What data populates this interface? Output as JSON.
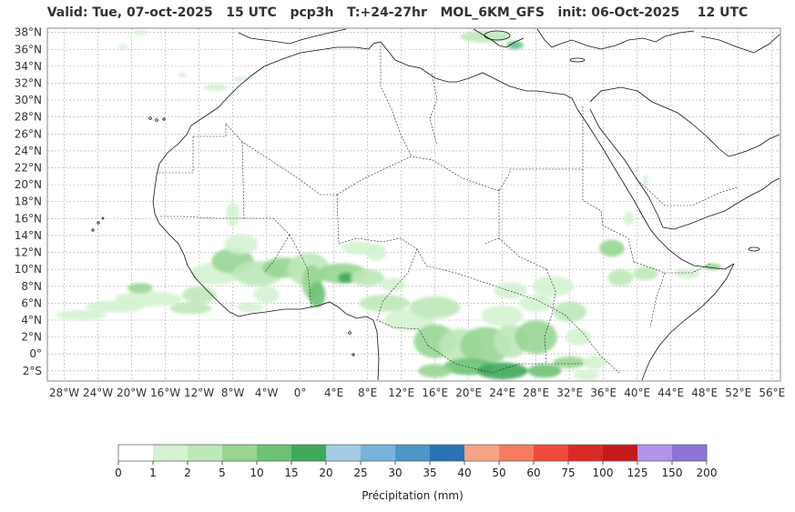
{
  "title": "Valid: Tue, 07-oct-2025   15 UTC   pcp3h   T:+24-27hr   MOL_6KM_GFS   init: 06-Oct-2025    12 UTC",
  "map": {
    "lon_range": [
      -30,
      57
    ],
    "lat_range": [
      -3.2,
      38.5
    ],
    "lat_ticks": [
      "38°N",
      "36°N",
      "34°N",
      "32°N",
      "30°N",
      "28°N",
      "26°N",
      "24°N",
      "22°N",
      "20°N",
      "18°N",
      "16°N",
      "14°N",
      "12°N",
      "10°N",
      "8°N",
      "6°N",
      "4°N",
      "2°N",
      "0°",
      "2°S"
    ],
    "lat_values": [
      38,
      36,
      34,
      32,
      30,
      28,
      26,
      24,
      22,
      20,
      18,
      16,
      14,
      12,
      10,
      8,
      6,
      4,
      2,
      0,
      -2
    ],
    "lon_ticks": [
      "28°W",
      "24°W",
      "20°W",
      "16°W",
      "12°W",
      "8°W",
      "4°W",
      "0°",
      "4°E",
      "8°E",
      "12°E",
      "16°E",
      "20°E",
      "24°E",
      "28°E",
      "32°E",
      "36°E",
      "40°E",
      "44°E",
      "48°E",
      "52°E",
      "56°E"
    ],
    "lon_values": [
      -28,
      -24,
      -20,
      -16,
      -12,
      -8,
      -4,
      0,
      4,
      8,
      12,
      16,
      20,
      24,
      28,
      32,
      36,
      40,
      44,
      48,
      52,
      56
    ],
    "grid": true
  },
  "colorbar": {
    "label": "Précipitation (mm)",
    "ticks": [
      "0",
      "1",
      "2",
      "5",
      "10",
      "15",
      "20",
      "25",
      "30",
      "35",
      "40",
      "50",
      "60",
      "75",
      "100",
      "125",
      "150",
      "200"
    ],
    "colors": [
      "#ffffff",
      "#d4f2d2",
      "#bfe8b9",
      "#98d593",
      "#6dc274",
      "#3fa95b",
      "#a3cbe3",
      "#79b3da",
      "#4c96c8",
      "#2a73b5",
      "#f7a385",
      "#f77c5f",
      "#ee4b3d",
      "#d92a27",
      "#c41a1b",
      "#b094ec",
      "#8e72d8",
      "#4b0a86"
    ]
  },
  "precip_colors": {
    "light": "#d4f2d2",
    "l2": "#bfe8b9",
    "mid": "#98d593",
    "strong": "#6dc274",
    "heavy": "#3fa95b",
    "blue": "#79b3da"
  }
}
